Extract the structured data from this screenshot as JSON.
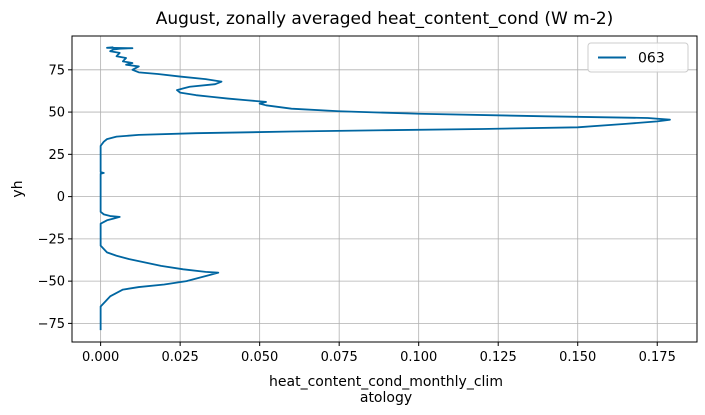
{
  "chart_data": {
    "type": "line",
    "title": "August, zonally averaged heat_content_cond (W m-2)",
    "xlabel_lines": [
      "heat_content_cond_monthly_clim",
      "atology"
    ],
    "ylabel": "yh",
    "xlim": [
      -0.009,
      0.1875
    ],
    "ylim": [
      -86,
      95
    ],
    "xticks": [
      0.0,
      0.025,
      0.05,
      0.075,
      0.1,
      0.125,
      0.15,
      0.175
    ],
    "xtick_labels": [
      "0.000",
      "0.025",
      "0.050",
      "0.075",
      "0.100",
      "0.125",
      "0.150",
      "0.175"
    ],
    "yticks": [
      -75,
      -50,
      -25,
      0,
      25,
      50,
      75
    ],
    "ytick_labels": [
      "−75",
      "−50",
      "−25",
      "0",
      "25",
      "50",
      "75"
    ],
    "grid": true,
    "legend_position": "top-right",
    "series": [
      {
        "name": "063",
        "color": "#0066a1",
        "points": [
          [
            0.0,
            -79
          ],
          [
            0.0,
            -70
          ],
          [
            0.0,
            -65
          ],
          [
            0.001,
            -63
          ],
          [
            0.002,
            -61
          ],
          [
            0.003,
            -59
          ],
          [
            0.005,
            -57
          ],
          [
            0.007,
            -55
          ],
          [
            0.012,
            -53.5
          ],
          [
            0.02,
            -52
          ],
          [
            0.027,
            -50
          ],
          [
            0.031,
            -48
          ],
          [
            0.034,
            -46.5
          ],
          [
            0.037,
            -45
          ],
          [
            0.033,
            -44.5
          ],
          [
            0.026,
            -43
          ],
          [
            0.019,
            -41
          ],
          [
            0.014,
            -39
          ],
          [
            0.009,
            -37
          ],
          [
            0.005,
            -35
          ],
          [
            0.002,
            -33
          ],
          [
            0.001,
            -31
          ],
          [
            0.0,
            -29
          ],
          [
            0.0,
            -25
          ],
          [
            0.0,
            -20
          ],
          [
            0.0,
            -16
          ],
          [
            0.002,
            -14
          ],
          [
            0.004,
            -13
          ],
          [
            0.006,
            -12
          ],
          [
            0.003,
            -11.5
          ],
          [
            0.001,
            -10.5
          ],
          [
            0.0,
            -9
          ],
          [
            0.0,
            -5
          ],
          [
            0.0,
            0
          ],
          [
            0.0,
            5
          ],
          [
            0.0,
            10
          ],
          [
            0.0,
            13.5
          ],
          [
            0.001,
            14
          ],
          [
            0.0,
            14.5
          ],
          [
            0.0,
            20
          ],
          [
            0.0,
            25
          ],
          [
            0.0,
            30
          ],
          [
            0.001,
            32.5
          ],
          [
            0.002,
            34
          ],
          [
            0.005,
            35.5
          ],
          [
            0.012,
            36.5
          ],
          [
            0.03,
            37.5
          ],
          [
            0.06,
            38.5
          ],
          [
            0.09,
            39.3
          ],
          [
            0.12,
            40
          ],
          [
            0.15,
            41
          ],
          [
            0.165,
            43
          ],
          [
            0.175,
            44.5
          ],
          [
            0.179,
            45.5
          ],
          [
            0.172,
            46.5
          ],
          [
            0.14,
            47.5
          ],
          [
            0.1,
            49
          ],
          [
            0.075,
            50.5
          ],
          [
            0.06,
            52
          ],
          [
            0.052,
            54
          ],
          [
            0.05,
            55
          ],
          [
            0.052,
            56
          ],
          [
            0.046,
            57
          ],
          [
            0.04,
            58
          ],
          [
            0.035,
            59
          ],
          [
            0.03,
            60
          ],
          [
            0.025,
            61.5
          ],
          [
            0.024,
            63
          ],
          [
            0.026,
            64
          ],
          [
            0.028,
            65
          ],
          [
            0.036,
            66.5
          ],
          [
            0.038,
            68
          ],
          [
            0.033,
            69.5
          ],
          [
            0.025,
            71
          ],
          [
            0.018,
            72.5
          ],
          [
            0.012,
            73.5
          ],
          [
            0.01,
            75
          ],
          [
            0.012,
            77
          ],
          [
            0.008,
            78
          ],
          [
            0.01,
            79
          ],
          [
            0.007,
            80
          ],
          [
            0.008,
            82
          ],
          [
            0.005,
            83
          ],
          [
            0.006,
            85
          ],
          [
            0.003,
            86
          ],
          [
            0.004,
            87
          ],
          [
            0.006,
            87.5
          ],
          [
            0.01,
            87.8
          ],
          [
            0.002,
            88
          ],
          [
            0.004,
            88.3
          ]
        ]
      }
    ]
  }
}
